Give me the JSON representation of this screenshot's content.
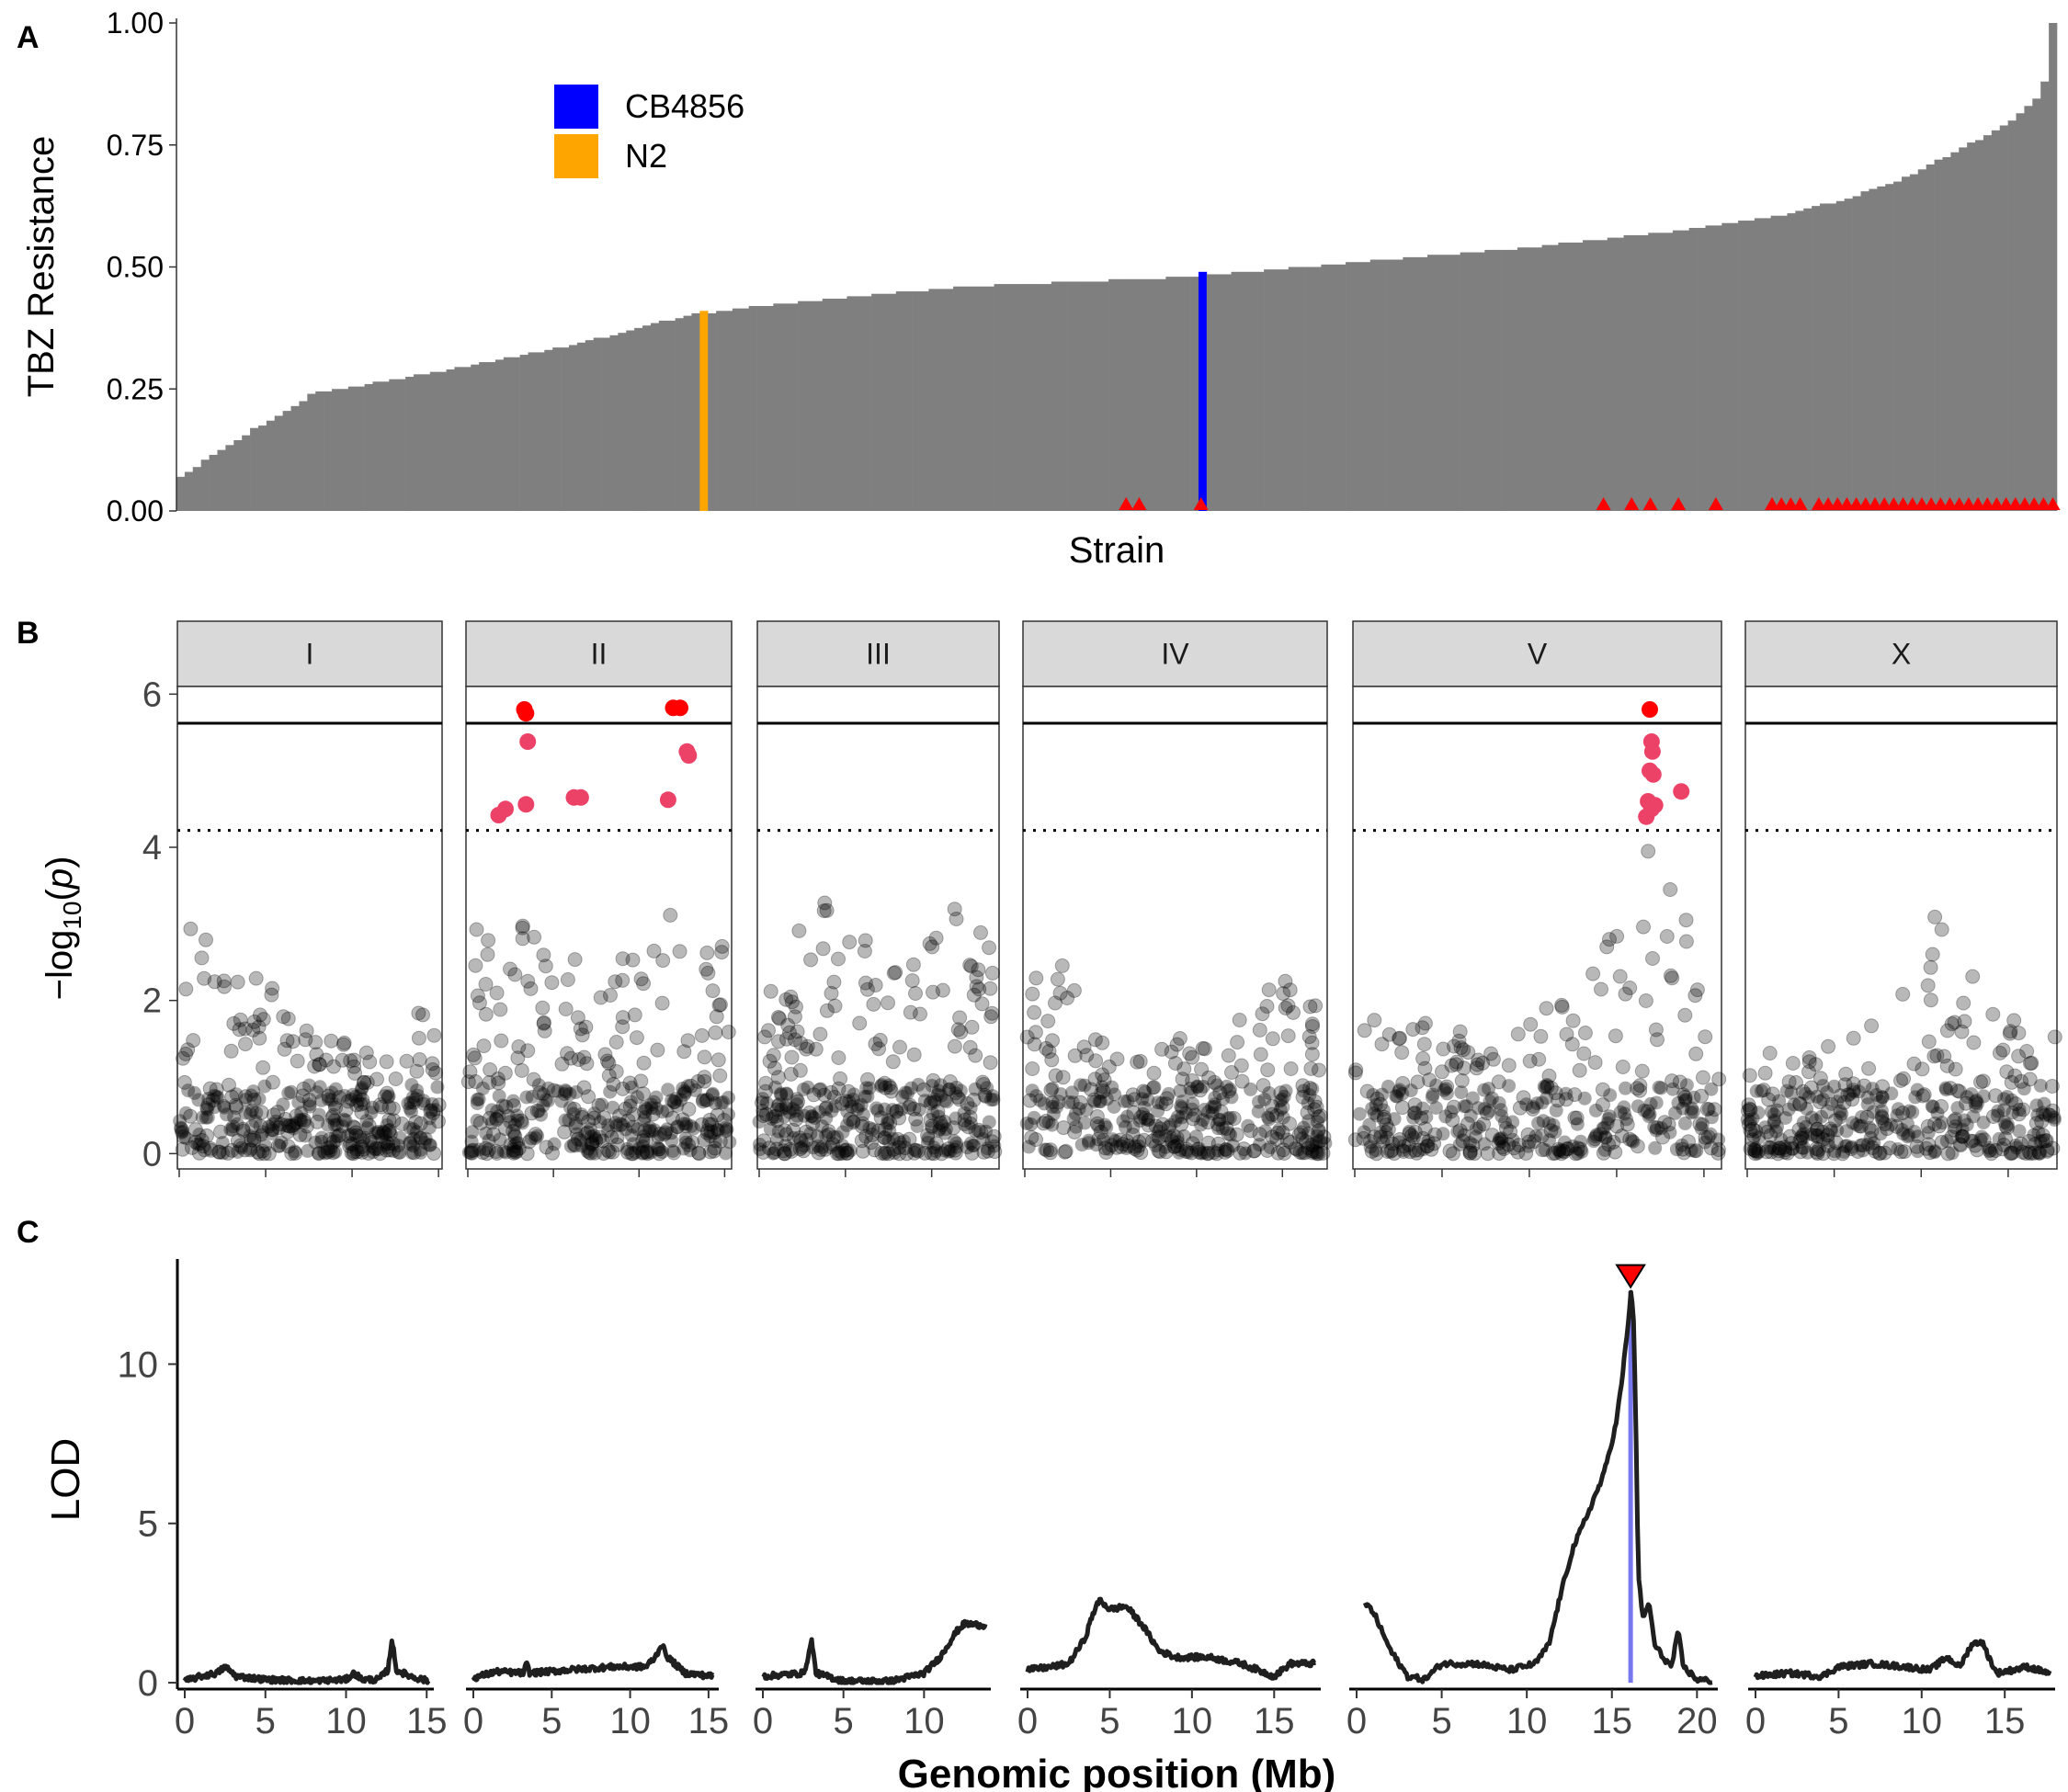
{
  "panel_labels": [
    "A",
    "B",
    "C"
  ],
  "chart_data": [
    {
      "panel": "A",
      "type": "bar",
      "xlabel": "Strain",
      "ylabel": "TBZ Resistance",
      "ylim": [
        0,
        1
      ],
      "yticks": [
        "0.00",
        "0.25",
        "0.50",
        "0.75",
        "1.00"
      ],
      "n_strains": 230,
      "default_color": "#7f7f7f",
      "resistance_profile": [
        [
          0.0,
          0.07
        ],
        [
          0.02,
          0.12
        ],
        [
          0.04,
          0.17
        ],
        [
          0.06,
          0.21
        ],
        [
          0.07,
          0.24
        ],
        [
          0.1,
          0.26
        ],
        [
          0.13,
          0.28
        ],
        [
          0.17,
          0.31
        ],
        [
          0.21,
          0.34
        ],
        [
          0.24,
          0.37
        ],
        [
          0.27,
          0.4
        ],
        [
          0.31,
          0.42
        ],
        [
          0.36,
          0.44
        ],
        [
          0.42,
          0.46
        ],
        [
          0.48,
          0.47
        ],
        [
          0.54,
          0.48
        ],
        [
          0.6,
          0.5
        ],
        [
          0.66,
          0.52
        ],
        [
          0.72,
          0.54
        ],
        [
          0.79,
          0.57
        ],
        [
          0.83,
          0.59
        ],
        [
          0.86,
          0.61
        ],
        [
          0.89,
          0.64
        ],
        [
          0.92,
          0.68
        ],
        [
          0.95,
          0.74
        ],
        [
          0.975,
          0.79
        ],
        [
          0.995,
          0.86
        ],
        [
          1.0,
          1.0
        ]
      ],
      "highlight_series": [
        {
          "name": "CB4856",
          "color": "#0000ff",
          "value": 0.49,
          "rank_fraction": 0.545
        },
        {
          "name": "N2",
          "color": "#ffa500",
          "value": 0.41,
          "rank_fraction": 0.278
        }
      ],
      "legend": {
        "position": "top-left",
        "entries": [
          "CB4856",
          "N2"
        ]
      },
      "triangle_marker_color": "#ff0000",
      "triangle_rank_fractions": [
        0.505,
        0.512,
        0.545,
        0.76,
        0.775,
        0.785,
        0.8,
        0.82,
        0.85,
        0.855,
        0.86,
        0.865,
        0.875,
        0.88,
        0.885,
        0.89,
        0.895,
        0.9,
        0.905,
        0.91,
        0.915,
        0.92,
        0.925,
        0.93,
        0.935,
        0.94,
        0.945,
        0.95,
        0.955,
        0.96,
        0.965,
        0.97,
        0.975,
        0.98,
        0.985,
        0.99,
        0.995,
        1.0
      ]
    },
    {
      "panel": "B",
      "type": "scatter",
      "ylabel": "−log10(p)",
      "ylim": [
        -0.2,
        6.1
      ],
      "yticks": [
        0,
        2,
        4,
        6
      ],
      "thresholds": {
        "solid": 5.62,
        "dotted": 4.22
      },
      "chromosomes": [
        {
          "name": "I",
          "length_mb": 15.1
        },
        {
          "name": "II",
          "length_mb": 15.3
        },
        {
          "name": "III",
          "length_mb": 13.8
        },
        {
          "name": "IV",
          "length_mb": 17.5
        },
        {
          "name": "V",
          "length_mb": 20.9
        },
        {
          "name": "X",
          "length_mb": 17.7
        }
      ],
      "background_max": [
        [
          [
            0,
            3.0
          ],
          [
            2,
            2.8
          ],
          [
            4,
            2.6
          ],
          [
            6,
            2.0
          ],
          [
            8,
            1.6
          ],
          [
            10,
            1.4
          ],
          [
            12,
            1.2
          ],
          [
            14,
            2.0
          ],
          [
            15.1,
            2.6
          ]
        ],
        [
          [
            0,
            3.4
          ],
          [
            2,
            3.2
          ],
          [
            4,
            3.0
          ],
          [
            6,
            3.0
          ],
          [
            8,
            2.8
          ],
          [
            10,
            2.6
          ],
          [
            12,
            3.4
          ],
          [
            14,
            3.6
          ],
          [
            15.3,
            2.5
          ]
        ],
        [
          [
            0,
            1.8
          ],
          [
            2,
            2.8
          ],
          [
            4,
            3.5
          ],
          [
            6,
            2.8
          ],
          [
            8,
            2.6
          ],
          [
            10,
            3.0
          ],
          [
            12,
            3.3
          ],
          [
            13.8,
            3.0
          ]
        ],
        [
          [
            0,
            2.8
          ],
          [
            2,
            2.6
          ],
          [
            4,
            1.6
          ],
          [
            6,
            1.2
          ],
          [
            8,
            1.4
          ],
          [
            10,
            1.6
          ],
          [
            12,
            2.2
          ],
          [
            14,
            2.6
          ],
          [
            17.5,
            1.8
          ]
        ],
        [
          [
            0,
            2.4
          ],
          [
            2,
            1.6
          ],
          [
            4,
            1.8
          ],
          [
            6,
            1.6
          ],
          [
            8,
            1.6
          ],
          [
            10,
            1.8
          ],
          [
            12,
            2.0
          ],
          [
            14,
            2.8
          ],
          [
            15.5,
            3.0
          ],
          [
            16.5,
            4.1
          ],
          [
            17.5,
            3.6
          ],
          [
            19,
            3.2
          ],
          [
            20.9,
            1.4
          ]
        ],
        [
          [
            0,
            1.3
          ],
          [
            2,
            1.4
          ],
          [
            4,
            1.3
          ],
          [
            6,
            1.6
          ],
          [
            8,
            1.8
          ],
          [
            10,
            2.4
          ],
          [
            11,
            3.3
          ],
          [
            12,
            2.6
          ],
          [
            14,
            2.0
          ],
          [
            17.7,
            1.7
          ]
        ]
      ],
      "significant_points_II": [
        [
          1.8,
          4.42
        ],
        [
          2.2,
          4.5
        ],
        [
          3.3,
          5.8
        ],
        [
          3.4,
          5.75
        ],
        [
          3.5,
          5.38
        ],
        [
          3.4,
          4.56
        ],
        [
          6.2,
          4.65
        ],
        [
          6.6,
          4.65
        ],
        [
          11.7,
          4.62
        ],
        [
          12.0,
          5.82
        ],
        [
          12.4,
          5.82
        ],
        [
          12.8,
          5.25
        ],
        [
          12.9,
          5.2
        ]
      ],
      "significant_points_V": [
        [
          16.9,
          5.8
        ],
        [
          17.0,
          5.38
        ],
        [
          17.05,
          5.25
        ],
        [
          16.9,
          5.0
        ],
        [
          17.1,
          4.95
        ],
        [
          16.8,
          4.6
        ],
        [
          17.0,
          4.5
        ],
        [
          16.7,
          4.4
        ],
        [
          17.2,
          4.55
        ],
        [
          18.7,
          4.73
        ]
      ],
      "colors": {
        "sig_top": "#ff0000",
        "sig": "#ec4268",
        "background": "#000000"
      }
    },
    {
      "panel": "C",
      "type": "line",
      "xlabel": "Genomic position (Mb)",
      "ylabel": "LOD",
      "ylim": [
        -0.2,
        13.3
      ],
      "yticks": [
        0,
        5,
        10
      ],
      "chromosomes": [
        {
          "name": "I",
          "length_mb": 15.1,
          "ticks": [
            0,
            5,
            10,
            15
          ],
          "lod": [
            [
              0,
              0.05
            ],
            [
              1,
              0.2
            ],
            [
              2,
              0.3
            ],
            [
              2.5,
              0.5
            ],
            [
              3.2,
              0.2
            ],
            [
              5,
              0.1
            ],
            [
              8,
              0.05
            ],
            [
              10,
              0.1
            ],
            [
              10.5,
              0.3
            ],
            [
              11,
              0.1
            ],
            [
              12,
              0.1
            ],
            [
              12.6,
              0.4
            ],
            [
              12.85,
              1.4
            ],
            [
              13.1,
              0.4
            ],
            [
              14,
              0.2
            ],
            [
              15.1,
              0.05
            ]
          ]
        },
        {
          "name": "II",
          "length_mb": 15.3,
          "ticks": [
            0,
            5,
            10,
            15
          ],
          "lod": [
            [
              0,
              0.15
            ],
            [
              1.5,
              0.35
            ],
            [
              3.2,
              0.3
            ],
            [
              3.4,
              0.6
            ],
            [
              3.6,
              0.3
            ],
            [
              6,
              0.4
            ],
            [
              9,
              0.5
            ],
            [
              11,
              0.5
            ],
            [
              11.6,
              0.8
            ],
            [
              12.0,
              1.2
            ],
            [
              12.4,
              0.8
            ],
            [
              13.5,
              0.3
            ],
            [
              15.3,
              0.2
            ]
          ]
        },
        {
          "name": "III",
          "length_mb": 13.8,
          "ticks": [
            0,
            5,
            10
          ],
          "lod": [
            [
              0,
              0.2
            ],
            [
              2.5,
              0.3
            ],
            [
              2.8,
              0.7
            ],
            [
              3.0,
              1.4
            ],
            [
              3.3,
              0.3
            ],
            [
              5,
              0.05
            ],
            [
              8,
              0.05
            ],
            [
              10,
              0.3
            ],
            [
              11,
              0.8
            ],
            [
              12,
              1.6
            ],
            [
              12.5,
              1.85
            ],
            [
              13.8,
              1.8
            ]
          ]
        },
        {
          "name": "IV",
          "length_mb": 17.5,
          "ticks": [
            0,
            5,
            10,
            15
          ],
          "lod": [
            [
              0,
              0.4
            ],
            [
              1.5,
              0.5
            ],
            [
              2.5,
              0.6
            ],
            [
              3.5,
              1.4
            ],
            [
              4.0,
              2.2
            ],
            [
              4.4,
              2.6
            ],
            [
              5,
              2.3
            ],
            [
              6,
              2.4
            ],
            [
              7.0,
              1.8
            ],
            [
              8,
              1.0
            ],
            [
              9,
              0.8
            ],
            [
              11,
              0.8
            ],
            [
              13,
              0.6
            ],
            [
              15,
              0.2
            ],
            [
              16,
              0.6
            ],
            [
              17.5,
              0.6
            ]
          ]
        },
        {
          "name": "V",
          "length_mb": 20.9,
          "ticks": [
            0,
            5,
            10,
            15,
            20
          ],
          "lod": [
            [
              0.5,
              2.5
            ],
            [
              1,
              2.2
            ],
            [
              2,
              1.0
            ],
            [
              3,
              0.2
            ],
            [
              4,
              0.1
            ],
            [
              5,
              0.6
            ],
            [
              7,
              0.6
            ],
            [
              9,
              0.4
            ],
            [
              10.5,
              0.6
            ],
            [
              11.3,
              1.2
            ],
            [
              12,
              2.8
            ],
            [
              12.7,
              4.2
            ],
            [
              13.5,
              5.2
            ],
            [
              14.5,
              6.5
            ],
            [
              15.2,
              8.0
            ],
            [
              15.6,
              9.5
            ],
            [
              15.85,
              10.8
            ],
            [
              16.0,
              11.4
            ],
            [
              16.1,
              12.3
            ],
            [
              16.25,
              11.8
            ],
            [
              16.4,
              8.5
            ],
            [
              16.55,
              3.5
            ],
            [
              16.8,
              2.0
            ],
            [
              17.2,
              2.5
            ],
            [
              17.5,
              1.2
            ],
            [
              18,
              0.8
            ],
            [
              18.5,
              0.5
            ],
            [
              18.9,
              1.6
            ],
            [
              19.2,
              0.5
            ],
            [
              20,
              0.1
            ],
            [
              20.9,
              0.05
            ]
          ]
        },
        {
          "name": "X",
          "length_mb": 17.7,
          "ticks": [
            0,
            5,
            10,
            15
          ],
          "lod": [
            [
              0,
              0.2
            ],
            [
              2,
              0.3
            ],
            [
              4,
              0.2
            ],
            [
              5,
              0.5
            ],
            [
              7,
              0.6
            ],
            [
              9,
              0.5
            ],
            [
              10.5,
              0.4
            ],
            [
              11.5,
              0.8
            ],
            [
              12.3,
              0.5
            ],
            [
              13.0,
              1.2
            ],
            [
              13.6,
              1.3
            ],
            [
              14.5,
              0.3
            ],
            [
              15.5,
              0.4
            ],
            [
              16.3,
              0.5
            ],
            [
              17.7,
              0.3
            ]
          ]
        }
      ],
      "peak": {
        "chromosome": "V",
        "position_mb": 16.1,
        "lod": 12.3,
        "marker_color": "#ff0000",
        "interval_color": "#7777ee"
      }
    }
  ]
}
